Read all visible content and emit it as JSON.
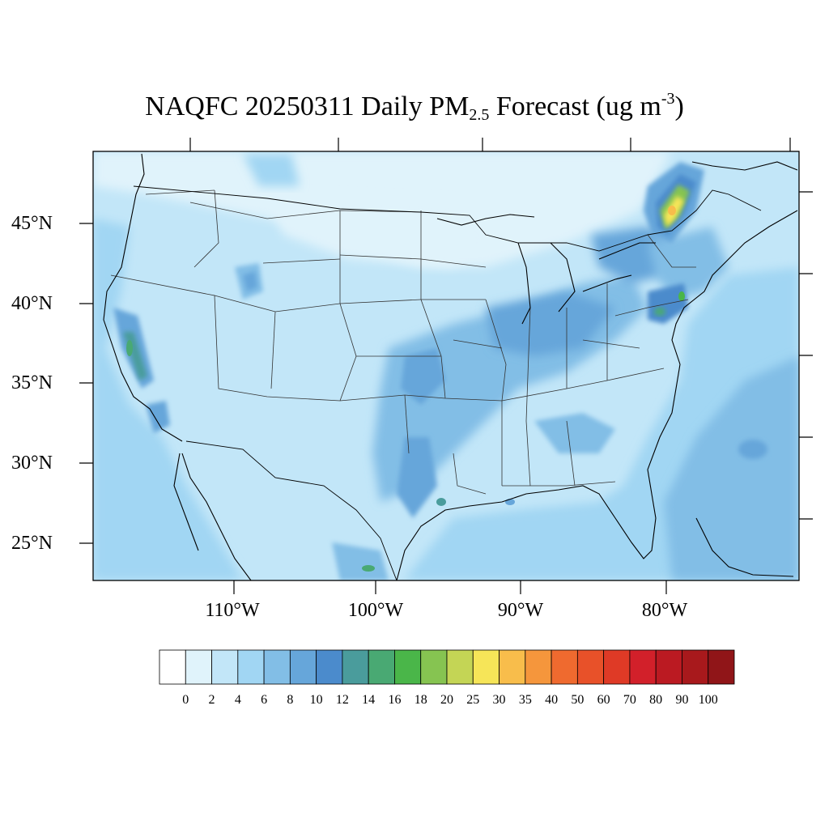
{
  "title": {
    "main": "NAQFC 20250311 Daily PM",
    "subscript": "2.5",
    "rest": " Forecast (ug m",
    "superscript": "-3",
    "close": ")"
  },
  "map": {
    "latitude_labels": [
      "45°N",
      "40°N",
      "35°N",
      "30°N",
      "25°N"
    ],
    "longitude_labels": [
      "110°W",
      "100°W",
      "90°W",
      "80°W"
    ],
    "colors": {
      "coast": "#000000",
      "state_lines": "#333333",
      "frame": "#000000"
    },
    "hotspots": [
      "Quebec / upstate New York – 25 to 35 ug m-3",
      "Central California valley – 14 to 18",
      "Southern Texas coast – 14 to 18"
    ]
  },
  "colorbar": {
    "labels": [
      "0",
      "2",
      "4",
      "6",
      "8",
      "10",
      "12",
      "14",
      "16",
      "18",
      "20",
      "25",
      "30",
      "35",
      "40",
      "50",
      "60",
      "70",
      "80",
      "90",
      "100"
    ],
    "colors": [
      "#ffffff",
      "#e0f3fb",
      "#c2e6f8",
      "#a1d6f3",
      "#82bee6",
      "#66a6da",
      "#4b8bcc",
      "#4a9c9c",
      "#49a973",
      "#4ab649",
      "#86c451",
      "#c4d555",
      "#f6e558",
      "#f8bd4b",
      "#f5963c",
      "#ef6a2f",
      "#e85129",
      "#df3a26",
      "#d2202a",
      "#bb1a22",
      "#a8191c",
      "#901518"
    ]
  }
}
